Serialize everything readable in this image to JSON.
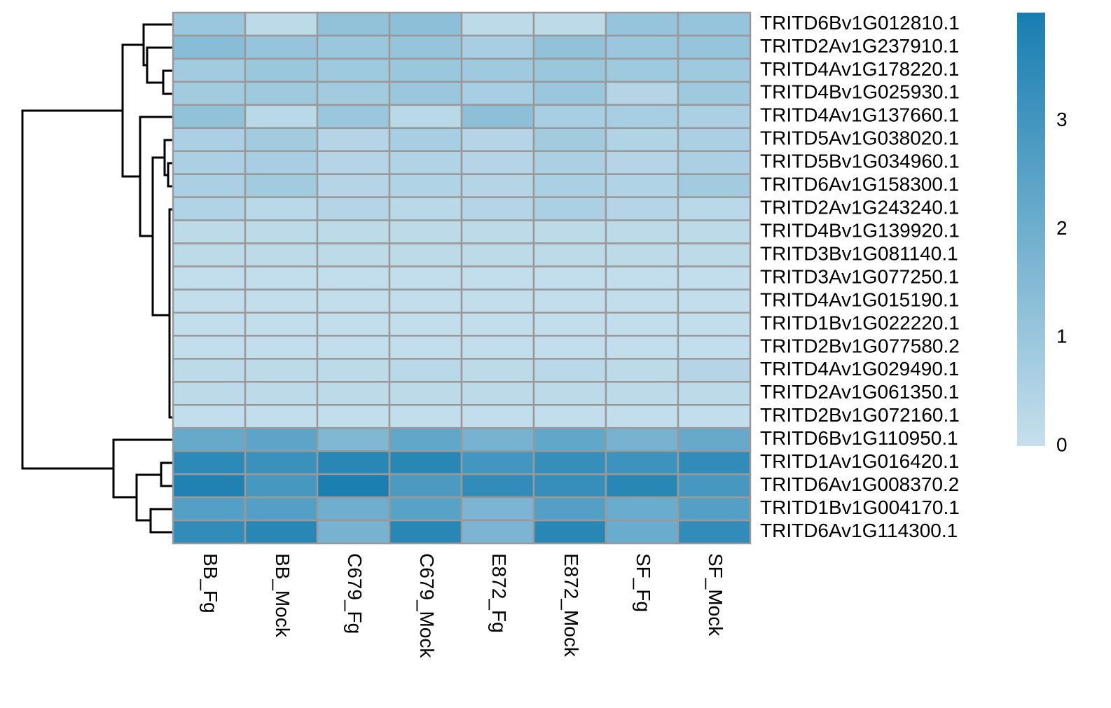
{
  "chart_data": {
    "type": "heatmap",
    "rows": [
      "TRITD6Bv1G012810.1",
      "TRITD2Av1G237910.1",
      "TRITD4Av1G178220.1",
      "TRITD4Bv1G025930.1",
      "TRITD4Av1G137660.1",
      "TRITD5Av1G038020.1",
      "TRITD5Bv1G034960.1",
      "TRITD6Av1G158300.1",
      "TRITD2Av1G243240.1",
      "TRITD4Bv1G139920.1",
      "TRITD3Bv1G081140.1",
      "TRITD3Av1G077250.1",
      "TRITD4Av1G015190.1",
      "TRITD1Bv1G022220.1",
      "TRITD2Bv1G077580.2",
      "TRITD4Av1G029490.1",
      "TRITD2Av1G061350.1",
      "TRITD2Bv1G072160.1",
      "TRITD6Bv1G110950.1",
      "TRITD1Av1G016420.1",
      "TRITD6Av1G008370.2",
      "TRITD1Bv1G004170.1",
      "TRITD6Av1G114300.1"
    ],
    "columns": [
      "BB_Fg",
      "BB_Mock",
      "C679_Fg",
      "C679_Mock",
      "E872_Fg",
      "E872_Mock",
      "SF_Fg",
      "SF_Mock"
    ],
    "values": [
      [
        1.0,
        0.2,
        1.2,
        1.3,
        0.2,
        0.2,
        1.1,
        1.1
      ],
      [
        1.4,
        1.1,
        1.0,
        1.1,
        0.7,
        1.2,
        1.0,
        1.1
      ],
      [
        0.8,
        1.0,
        0.9,
        1.0,
        0.9,
        1.0,
        0.9,
        0.9
      ],
      [
        0.8,
        0.9,
        0.8,
        1.0,
        0.7,
        1.0,
        0.4,
        0.9
      ],
      [
        1.2,
        0.3,
        1.0,
        0.3,
        1.3,
        0.7,
        0.7,
        0.6
      ],
      [
        0.6,
        0.8,
        0.4,
        0.7,
        0.4,
        0.8,
        0.5,
        0.6
      ],
      [
        0.6,
        0.7,
        0.4,
        0.5,
        0.4,
        0.6,
        0.4,
        0.6
      ],
      [
        0.6,
        0.8,
        0.4,
        0.5,
        0.4,
        0.6,
        0.5,
        0.8
      ],
      [
        0.5,
        0.3,
        0.4,
        0.3,
        0.4,
        0.6,
        0.4,
        0.3
      ],
      [
        0.2,
        0.2,
        0.2,
        0.2,
        0.2,
        0.2,
        0.2,
        0.2
      ],
      [
        0.2,
        0.2,
        0.2,
        0.2,
        0.2,
        0.2,
        0.2,
        0.2
      ],
      [
        0.1,
        0.1,
        0.1,
        0.1,
        0.1,
        0.1,
        0.1,
        0.1
      ],
      [
        0.1,
        0.1,
        0.1,
        0.1,
        0.1,
        0.1,
        0.1,
        0.1
      ],
      [
        0.1,
        0.1,
        0.1,
        0.1,
        0.1,
        0.1,
        0.1,
        0.1
      ],
      [
        0.1,
        0.1,
        0.1,
        0.1,
        0.1,
        0.1,
        0.1,
        0.1
      ],
      [
        0.2,
        0.2,
        0.2,
        0.3,
        0.2,
        0.3,
        0.2,
        0.4
      ],
      [
        0.2,
        0.2,
        0.2,
        0.2,
        0.2,
        0.2,
        0.2,
        0.2
      ],
      [
        0.1,
        0.1,
        0.1,
        0.1,
        0.1,
        0.1,
        0.1,
        0.1
      ],
      [
        2.2,
        2.4,
        1.6,
        2.3,
        1.8,
        2.3,
        1.8,
        2.2
      ],
      [
        3.5,
        3.2,
        3.6,
        3.6,
        3.0,
        3.3,
        3.1,
        3.4
      ],
      [
        3.8,
        2.9,
        3.9,
        2.8,
        3.4,
        3.3,
        3.6,
        2.9
      ],
      [
        2.6,
        2.6,
        2.0,
        2.5,
        1.7,
        2.6,
        2.1,
        2.6
      ],
      [
        3.4,
        3.6,
        1.8,
        3.6,
        1.7,
        3.6,
        2.1,
        3.4
      ]
    ],
    "colorscale": [
      "#c6dfec",
      "#177db0"
    ],
    "clim": [
      0,
      4
    ],
    "colorbar_ticks": [
      0,
      1,
      2,
      3
    ]
  }
}
